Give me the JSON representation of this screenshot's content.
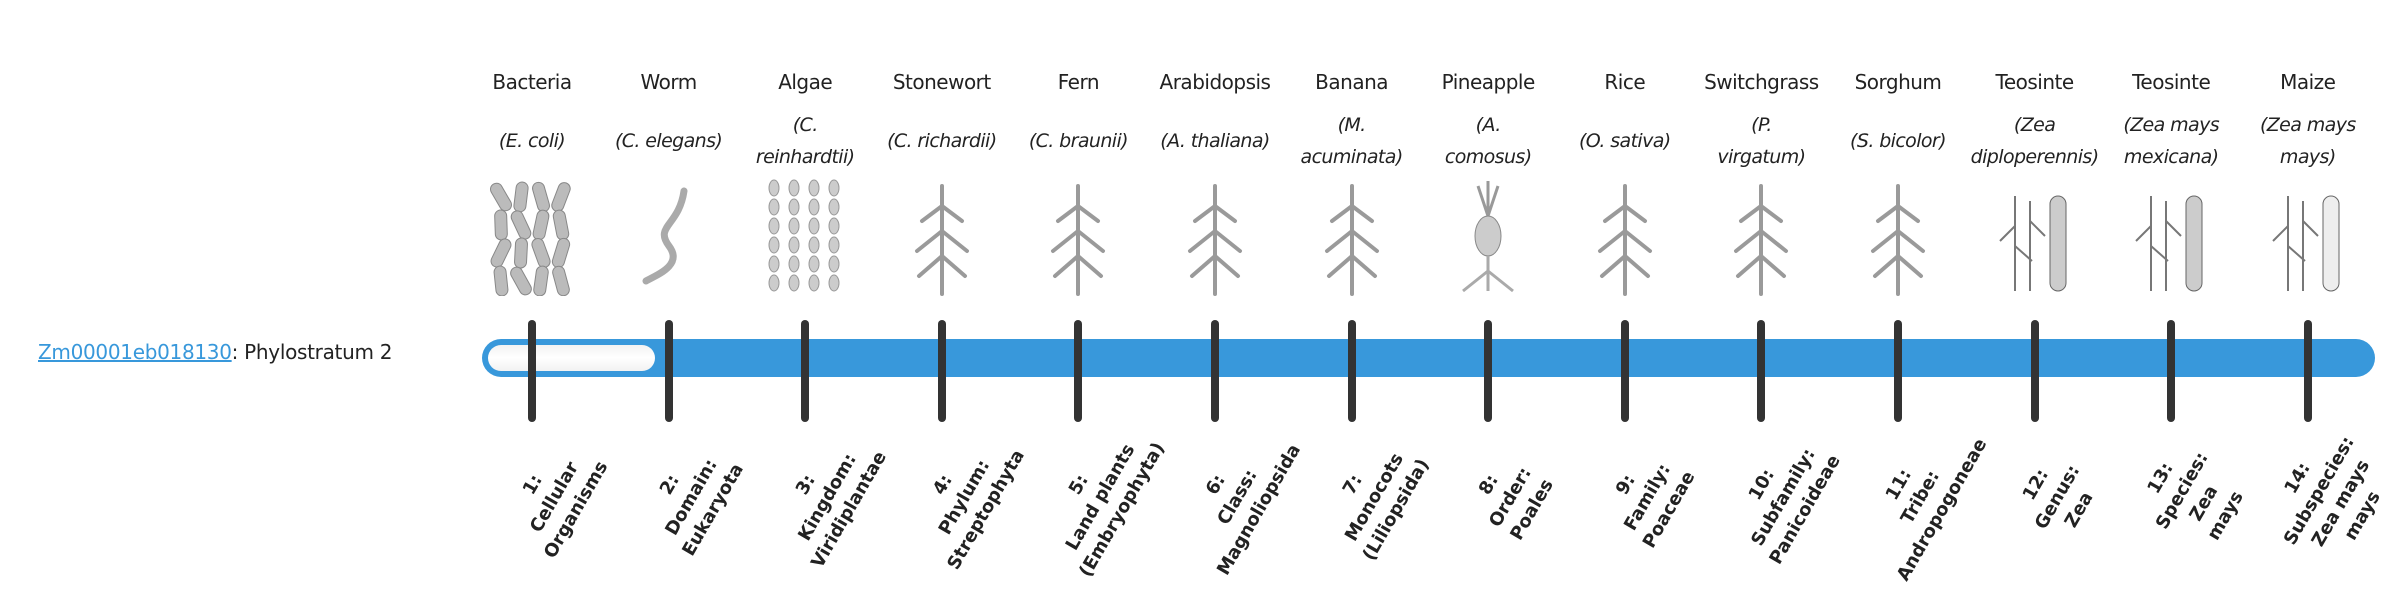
{
  "gene": {
    "id": "Zm00001eb018130",
    "suffix": ": Phylostratum 2"
  },
  "progress": {
    "current_stratum": 2,
    "total_strata": 14,
    "fill_color": "#3898db",
    "tick_color": "#333333"
  },
  "organisms": [
    {
      "common": "Bacteria",
      "scientific": "(E. coli)",
      "icon": "bacteria-illustration"
    },
    {
      "common": "Worm",
      "scientific": "(C. elegans)",
      "icon": "worm-illustration"
    },
    {
      "common": "Algae",
      "scientific": "(C.\nreinhardtii)",
      "icon": "algae-illustration"
    },
    {
      "common": "Stonewort",
      "scientific": "(C. richardii)",
      "icon": "stonewort-illustration"
    },
    {
      "common": "Fern",
      "scientific": "(C. braunii)",
      "icon": "fern-illustration"
    },
    {
      "common": "Arabidopsis",
      "scientific": "(A. thaliana)",
      "icon": "arabidopsis-illustration"
    },
    {
      "common": "Banana",
      "scientific": "(M.\nacuminata)",
      "icon": "banana-illustration"
    },
    {
      "common": "Pineapple",
      "scientific": "(A.\ncomosus)",
      "icon": "pineapple-illustration"
    },
    {
      "common": "Rice",
      "scientific": "(O. sativa)",
      "icon": "rice-illustration"
    },
    {
      "common": "Switchgrass",
      "scientific": "(P.\nvirgatum)",
      "icon": "switchgrass-illustration"
    },
    {
      "common": "Sorghum",
      "scientific": "(S. bicolor)",
      "icon": "sorghum-illustration"
    },
    {
      "common": "Teosinte",
      "scientific": "(Zea\ndiploperennis)",
      "icon": "teosinte-illustration"
    },
    {
      "common": "Teosinte",
      "scientific": "(Zea mays\nmexicana)",
      "icon": "teosinte-illustration"
    },
    {
      "common": "Maize",
      "scientific": "(Zea mays\nmays)",
      "icon": "maize-illustration"
    }
  ],
  "strata": [
    "1:\nCellular\nOrganisms",
    "2:\nDomain:\nEukaryota",
    "3:\nKingdom:\nViridiplantae",
    "4:\nPhylum:\nStreptophyta",
    "5:\nLand plants\n(Embryophyta)",
    "6:\nClass:\nMagnoliopsida",
    "7:\nMonocots\n(Liliopsida)",
    "8:\nOrder:\nPoales",
    "9:\nFamily:\nPoaceae",
    "10:\nSubfamily:\nPanicoideae",
    "11:\nTribe:\nAndropogoneae",
    "12:\nGenus:\nZea",
    "13:\nSpecies:\nZea\nmays",
    "14:\nSubspecies:\nZea mays\nmays"
  ]
}
